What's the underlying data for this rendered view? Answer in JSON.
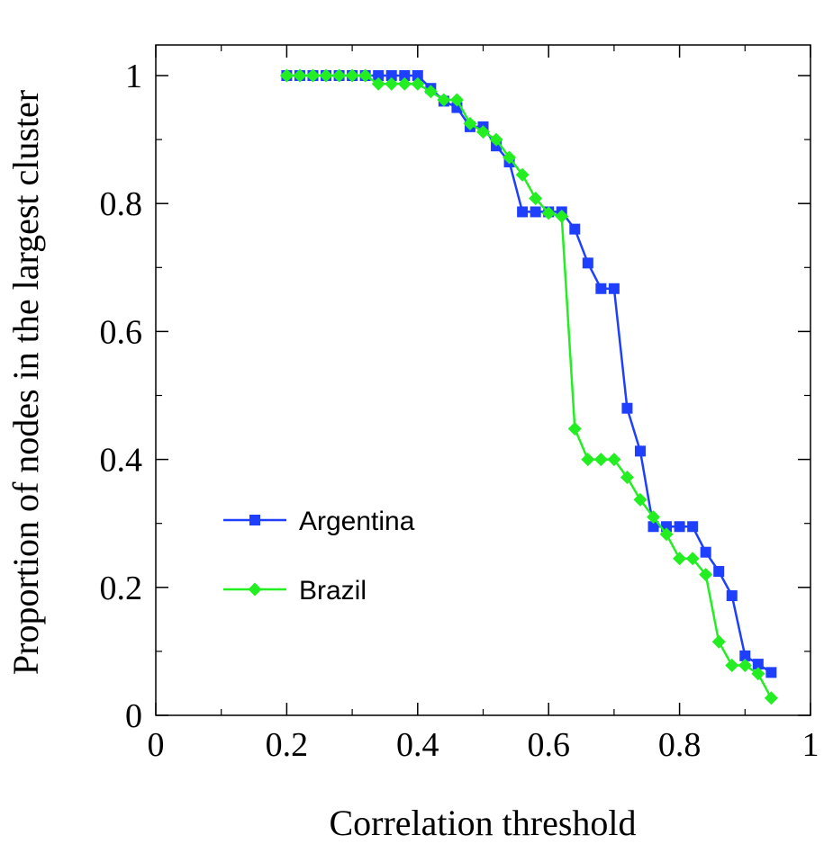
{
  "chart_data": {
    "type": "line",
    "xlabel": "Correlation threshold",
    "ylabel": "Proportion of nodes in the largest cluster",
    "xlim": [
      0,
      1
    ],
    "ylim": [
      0,
      1.0
    ],
    "x_ticks": [
      0,
      0.2,
      0.4,
      0.6,
      0.8,
      1
    ],
    "x_tick_labels": [
      "0",
      "0.2",
      "0.4",
      "0.6",
      "0.8",
      "1"
    ],
    "y_ticks": [
      0,
      0.2,
      0.4,
      0.6,
      0.8,
      1
    ],
    "y_tick_labels": [
      "0",
      "0.2",
      "0.4",
      "0.6",
      "0.8",
      "1"
    ],
    "grid": false,
    "legend_position": "left-middle",
    "series": [
      {
        "name": "Argentina",
        "color": "#1f3fff",
        "marker": "square",
        "points": [
          [
            0.2,
            1.0
          ],
          [
            0.22,
            1.0
          ],
          [
            0.24,
            1.0
          ],
          [
            0.26,
            1.0
          ],
          [
            0.28,
            1.0
          ],
          [
            0.3,
            1.0
          ],
          [
            0.32,
            1.0
          ],
          [
            0.34,
            1.0
          ],
          [
            0.36,
            1.0
          ],
          [
            0.38,
            1.0
          ],
          [
            0.4,
            1.0
          ],
          [
            0.42,
            0.98
          ],
          [
            0.44,
            0.96
          ],
          [
            0.46,
            0.95
          ],
          [
            0.48,
            0.92
          ],
          [
            0.5,
            0.92
          ],
          [
            0.52,
            0.89
          ],
          [
            0.54,
            0.865
          ],
          [
            0.56,
            0.787
          ],
          [
            0.58,
            0.787
          ],
          [
            0.6,
            0.787
          ],
          [
            0.62,
            0.787
          ],
          [
            0.64,
            0.76
          ],
          [
            0.66,
            0.707
          ],
          [
            0.68,
            0.667
          ],
          [
            0.7,
            0.667
          ],
          [
            0.72,
            0.48
          ],
          [
            0.74,
            0.413
          ],
          [
            0.76,
            0.295
          ],
          [
            0.78,
            0.295
          ],
          [
            0.8,
            0.295
          ],
          [
            0.82,
            0.295
          ],
          [
            0.84,
            0.255
          ],
          [
            0.86,
            0.225
          ],
          [
            0.88,
            0.187
          ],
          [
            0.9,
            0.093
          ],
          [
            0.92,
            0.08
          ],
          [
            0.94,
            0.067
          ]
        ]
      },
      {
        "name": "Brazil",
        "color": "#22ee22",
        "marker": "diamond",
        "points": [
          [
            0.2,
            1.0
          ],
          [
            0.22,
            1.0
          ],
          [
            0.24,
            1.0
          ],
          [
            0.26,
            1.0
          ],
          [
            0.28,
            1.0
          ],
          [
            0.3,
            1.0
          ],
          [
            0.32,
            1.0
          ],
          [
            0.34,
            0.987
          ],
          [
            0.36,
            0.987
          ],
          [
            0.38,
            0.987
          ],
          [
            0.4,
            0.987
          ],
          [
            0.42,
            0.975
          ],
          [
            0.44,
            0.962
          ],
          [
            0.46,
            0.962
          ],
          [
            0.48,
            0.925
          ],
          [
            0.5,
            0.912
          ],
          [
            0.52,
            0.9
          ],
          [
            0.54,
            0.872
          ],
          [
            0.56,
            0.845
          ],
          [
            0.58,
            0.808
          ],
          [
            0.6,
            0.785
          ],
          [
            0.62,
            0.78
          ],
          [
            0.64,
            0.448
          ],
          [
            0.66,
            0.4
          ],
          [
            0.68,
            0.4
          ],
          [
            0.7,
            0.4
          ],
          [
            0.72,
            0.372
          ],
          [
            0.74,
            0.337
          ],
          [
            0.76,
            0.31
          ],
          [
            0.78,
            0.283
          ],
          [
            0.8,
            0.245
          ],
          [
            0.82,
            0.245
          ],
          [
            0.84,
            0.22
          ],
          [
            0.86,
            0.115
          ],
          [
            0.88,
            0.078
          ],
          [
            0.9,
            0.078
          ],
          [
            0.92,
            0.065
          ],
          [
            0.94,
            0.027
          ]
        ]
      }
    ]
  }
}
